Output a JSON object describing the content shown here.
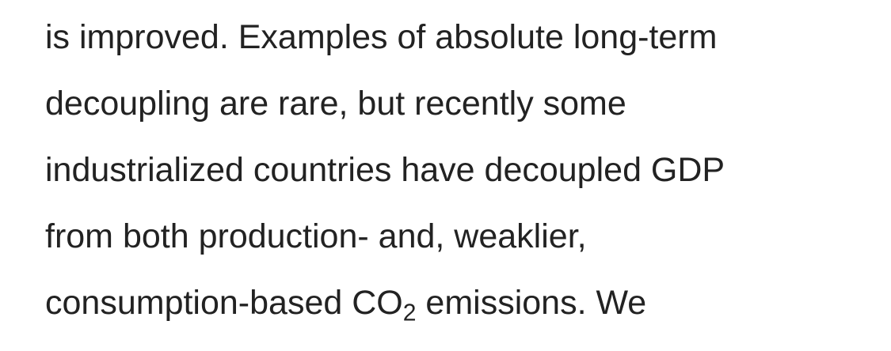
{
  "paragraph": {
    "lines": [
      "is improved. Examples of absolute long-term",
      "decoupling are rare, but recently some",
      "industrialized countries have decoupled GDP",
      "from both production- and, weaklier,"
    ],
    "last_line": {
      "before": "consumption-based CO",
      "subscript": "2",
      "after": " emissions. We"
    }
  },
  "colors": {
    "text": "#222222",
    "background": "#ffffff"
  }
}
